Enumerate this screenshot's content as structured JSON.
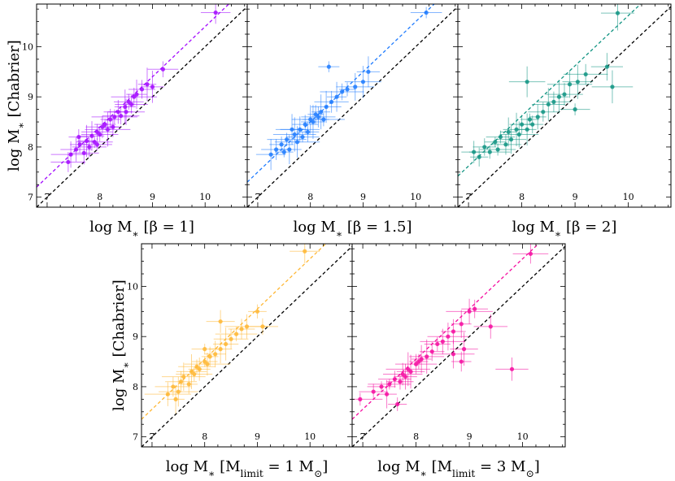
{
  "figure": {
    "y_label_parts": [
      "log M",
      "∗",
      " [Chabrier]"
    ]
  },
  "chart_data": [
    {
      "type": "scatter",
      "panel": "beta-1",
      "xlabel_parts": [
        "log M",
        "∗",
        " [β = 1]"
      ],
      "ylabel": "log M* [Chabrier]",
      "xlim": [
        6.8,
        10.8
      ],
      "ylim": [
        6.8,
        10.85
      ],
      "xticks": [
        "7",
        "8",
        "9",
        "10"
      ],
      "yticks": [
        "7",
        "8",
        "9",
        "10"
      ],
      "color": "#a30bff",
      "fit_offset": 0.4,
      "points": [
        [
          7.55,
          7.95
        ],
        [
          7.62,
          8.05
        ],
        [
          7.7,
          7.88
        ],
        [
          7.75,
          8.12
        ],
        [
          7.8,
          8.0
        ],
        [
          7.85,
          8.22
        ],
        [
          7.9,
          8.1
        ],
        [
          7.95,
          8.3
        ],
        [
          8.0,
          8.25
        ],
        [
          8.05,
          8.4
        ],
        [
          8.1,
          8.45
        ],
        [
          8.15,
          8.35
        ],
        [
          8.2,
          8.55
        ],
        [
          8.28,
          8.6
        ],
        [
          8.35,
          8.7
        ],
        [
          8.4,
          8.62
        ],
        [
          8.48,
          8.8
        ],
        [
          8.55,
          8.9
        ],
        [
          8.6,
          8.85
        ],
        [
          8.7,
          9.05
        ],
        [
          8.8,
          9.15
        ],
        [
          8.9,
          9.25
        ],
        [
          9.0,
          9.2
        ],
        [
          9.2,
          9.55
        ],
        [
          7.4,
          7.7
        ],
        [
          7.45,
          7.85
        ],
        [
          7.6,
          8.2
        ],
        [
          7.95,
          8.05
        ],
        [
          8.25,
          8.4
        ],
        [
          8.5,
          8.7
        ],
        [
          8.65,
          9.0
        ],
        [
          10.2,
          10.68
        ]
      ]
    },
    {
      "type": "scatter",
      "panel": "beta-1.5",
      "xlabel_parts": [
        "log M",
        "∗",
        " [β = 1.5]"
      ],
      "xlim": [
        6.8,
        10.8
      ],
      "ylim": [
        6.8,
        10.85
      ],
      "xticks": [
        "7",
        "8",
        "9",
        "10"
      ],
      "color": "#1e7bff",
      "fit_offset": 0.5,
      "points": [
        [
          7.25,
          7.85
        ],
        [
          7.35,
          7.95
        ],
        [
          7.45,
          8.05
        ],
        [
          7.55,
          8.15
        ],
        [
          7.6,
          7.95
        ],
        [
          7.7,
          8.25
        ],
        [
          7.75,
          8.1
        ],
        [
          7.8,
          8.35
        ],
        [
          7.85,
          8.2
        ],
        [
          7.9,
          8.45
        ],
        [
          7.95,
          8.3
        ],
        [
          8.0,
          8.55
        ],
        [
          8.05,
          8.5
        ],
        [
          8.1,
          8.65
        ],
        [
          8.15,
          8.6
        ],
        [
          8.2,
          8.7
        ],
        [
          8.3,
          8.8
        ],
        [
          8.4,
          8.9
        ],
        [
          8.5,
          9.0
        ],
        [
          8.6,
          9.1
        ],
        [
          8.7,
          9.15
        ],
        [
          8.85,
          9.2
        ],
        [
          9.0,
          9.3
        ],
        [
          9.1,
          9.5
        ],
        [
          8.35,
          9.6
        ],
        [
          7.5,
          7.9
        ],
        [
          7.65,
          8.35
        ],
        [
          8.25,
          8.55
        ],
        [
          10.2,
          10.68
        ]
      ]
    },
    {
      "type": "scatter",
      "panel": "beta-2",
      "xlabel_parts": [
        "log M",
        "∗",
        " [β = 2]"
      ],
      "xlim": [
        6.8,
        10.8
      ],
      "ylim": [
        6.8,
        10.85
      ],
      "xticks": [
        "7",
        "8",
        "9",
        "10"
      ],
      "color": "#119482",
      "fit_offset": 0.62,
      "points": [
        [
          7.1,
          7.9
        ],
        [
          7.2,
          7.8
        ],
        [
          7.3,
          8.0
        ],
        [
          7.4,
          7.9
        ],
        [
          7.5,
          8.1
        ],
        [
          7.55,
          7.95
        ],
        [
          7.6,
          8.2
        ],
        [
          7.7,
          8.05
        ],
        [
          7.75,
          8.3
        ],
        [
          7.8,
          8.15
        ],
        [
          7.9,
          8.35
        ],
        [
          7.95,
          8.25
        ],
        [
          8.0,
          8.45
        ],
        [
          8.1,
          8.35
        ],
        [
          8.15,
          8.55
        ],
        [
          8.2,
          8.45
        ],
        [
          8.3,
          8.6
        ],
        [
          8.4,
          8.7
        ],
        [
          8.5,
          8.85
        ],
        [
          8.6,
          8.9
        ],
        [
          8.7,
          9.0
        ],
        [
          8.8,
          9.05
        ],
        [
          8.9,
          9.25
        ],
        [
          9.05,
          9.3
        ],
        [
          9.2,
          9.45
        ],
        [
          9.6,
          9.6
        ],
        [
          9.7,
          9.2
        ],
        [
          9.8,
          10.67
        ],
        [
          8.1,
          9.3
        ],
        [
          9.0,
          8.75
        ]
      ]
    },
    {
      "type": "scatter",
      "panel": "mlimit-1",
      "xlabel_parts": [
        "log M",
        "∗",
        " [M",
        "limit",
        " = 1 M",
        "⊙",
        "]"
      ],
      "ylabel": "log M* [Chabrier]",
      "xlim": [
        6.8,
        10.8
      ],
      "ylim": [
        6.8,
        10.85
      ],
      "xticks": [
        "7",
        "8",
        "9",
        "10"
      ],
      "yticks": [
        "7",
        "8",
        "9",
        "10"
      ],
      "color": "#ffb734",
      "fit_offset": 0.55,
      "points": [
        [
          7.3,
          7.85
        ],
        [
          7.4,
          8.0
        ],
        [
          7.5,
          7.9
        ],
        [
          7.55,
          8.1
        ],
        [
          7.6,
          8.2
        ],
        [
          7.7,
          8.05
        ],
        [
          7.75,
          8.3
        ],
        [
          7.8,
          8.25
        ],
        [
          7.85,
          8.4
        ],
        [
          7.9,
          8.35
        ],
        [
          8.0,
          8.5
        ],
        [
          8.05,
          8.45
        ],
        [
          8.1,
          8.6
        ],
        [
          8.2,
          8.65
        ],
        [
          8.3,
          8.75
        ],
        [
          8.4,
          8.85
        ],
        [
          8.5,
          8.95
        ],
        [
          8.6,
          9.05
        ],
        [
          8.7,
          9.15
        ],
        [
          8.8,
          9.2
        ],
        [
          9.0,
          9.5
        ],
        [
          9.1,
          9.2
        ],
        [
          8.3,
          9.3
        ],
        [
          8.0,
          8.75
        ],
        [
          7.45,
          7.75
        ],
        [
          9.9,
          10.7
        ]
      ]
    },
    {
      "type": "scatter",
      "panel": "mlimit-3",
      "xlabel_parts": [
        "log M",
        "∗",
        " [M",
        "limit",
        " = 3 M",
        "⊙",
        "]"
      ],
      "xlim": [
        6.8,
        10.8
      ],
      "ylim": [
        6.8,
        10.85
      ],
      "xticks": [
        "7",
        "8",
        "9",
        "10"
      ],
      "color": "#f50da0",
      "fit_offset": 0.55,
      "points": [
        [
          6.95,
          7.75
        ],
        [
          7.2,
          7.9
        ],
        [
          7.35,
          8.0
        ],
        [
          7.45,
          7.85
        ],
        [
          7.5,
          8.05
        ],
        [
          7.6,
          8.15
        ],
        [
          7.7,
          8.1
        ],
        [
          7.75,
          8.25
        ],
        [
          7.8,
          8.2
        ],
        [
          7.85,
          8.35
        ],
        [
          7.9,
          8.3
        ],
        [
          8.0,
          8.45
        ],
        [
          8.05,
          8.5
        ],
        [
          8.1,
          8.55
        ],
        [
          8.2,
          8.6
        ],
        [
          8.3,
          8.7
        ],
        [
          8.4,
          8.85
        ],
        [
          8.5,
          8.9
        ],
        [
          8.6,
          9.0
        ],
        [
          8.7,
          9.1
        ],
        [
          8.85,
          9.25
        ],
        [
          9.0,
          9.5
        ],
        [
          9.1,
          9.55
        ],
        [
          9.4,
          9.2
        ],
        [
          8.85,
          8.5
        ],
        [
          8.7,
          8.65
        ],
        [
          9.8,
          8.35
        ],
        [
          10.15,
          10.65
        ],
        [
          7.65,
          7.65
        ],
        [
          8.9,
          8.75
        ]
      ]
    }
  ]
}
